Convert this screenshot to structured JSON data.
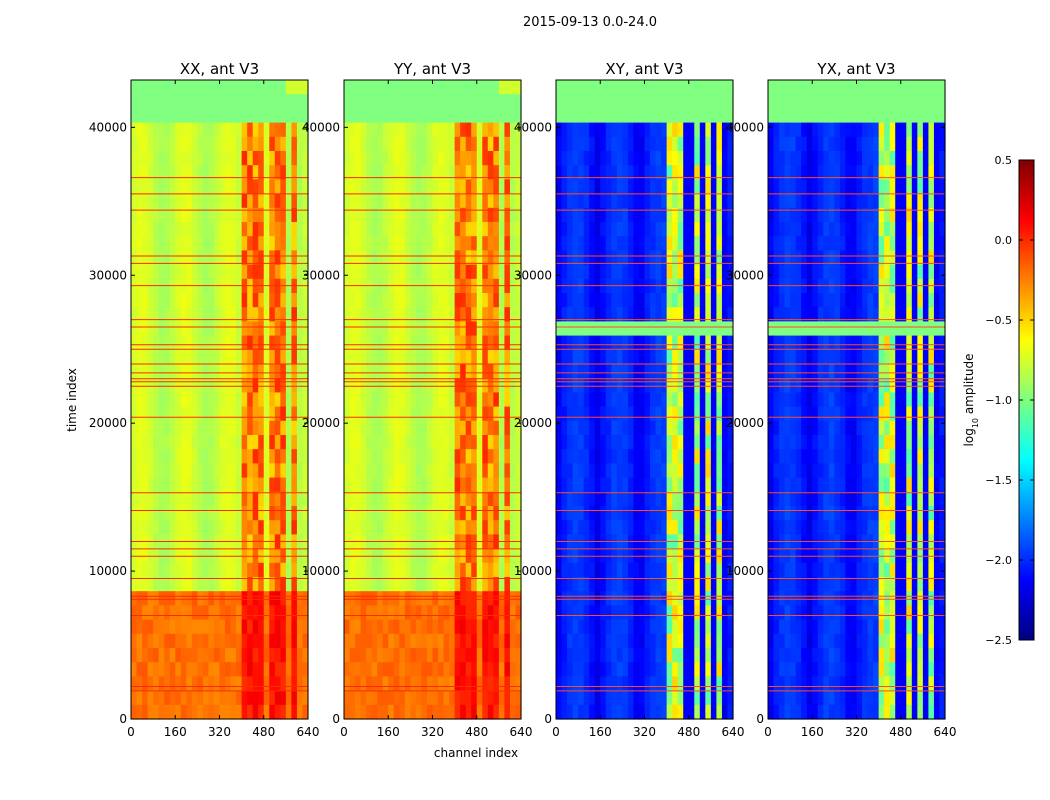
{
  "figure": {
    "suptitle": "2015-09-13 0.0-24.0",
    "xlabel": "channel index",
    "ylabel": "time index"
  },
  "chart_data": {
    "type": "heatmap",
    "title": "2015-09-13 0.0-24.0",
    "xlabel": "channel index",
    "ylabel": "time index",
    "xlim": [
      0,
      640
    ],
    "ylim": [
      0,
      43200
    ],
    "xticks": [
      "0",
      "160",
      "320",
      "480",
      "640"
    ],
    "yticks": [
      "0",
      "10000",
      "20000",
      "30000",
      "40000"
    ],
    "ytick_values": [
      0,
      10000,
      20000,
      30000,
      40000
    ],
    "xtick_values": [
      0,
      160,
      320,
      480,
      640
    ],
    "panels": [
      {
        "title": "XX, ant V3",
        "kind": "auto",
        "show_yticks": true
      },
      {
        "title": "YY, ant V3",
        "kind": "auto",
        "show_yticks": true
      },
      {
        "title": "XY, ant V3",
        "kind": "cross",
        "show_yticks": true
      },
      {
        "title": "YX, ant V3",
        "kind": "cross",
        "show_yticks": true
      }
    ],
    "colorbar": {
      "label_main": "log",
      "label_sub": "10",
      "label_tail": " amplitude",
      "range": [
        -2.5,
        0.5
      ],
      "ticks": [
        "0.5",
        "0.0",
        "−0.5",
        "−1.0",
        "−1.5",
        "−2.0",
        "−2.5"
      ],
      "tick_values": [
        0.5,
        0.0,
        -0.5,
        -1.0,
        -1.5,
        -2.0,
        -2.5
      ],
      "colormap": "jet"
    },
    "flagged_time_rows": [
      1900,
      2200,
      7000,
      8100,
      8300,
      9500,
      11000,
      11500,
      12000,
      14100,
      15300,
      20400,
      22500,
      22800,
      23000,
      23400,
      24000,
      25000,
      25300,
      26500,
      27000,
      29300,
      30800,
      31300,
      34400,
      35500,
      36600
    ],
    "bright_band_channels": [
      [
        400,
        440
      ],
      [
        450,
        460
      ],
      [
        470,
        490
      ],
      [
        500,
        520
      ],
      [
        530,
        560
      ],
      [
        575,
        600
      ]
    ]
  }
}
